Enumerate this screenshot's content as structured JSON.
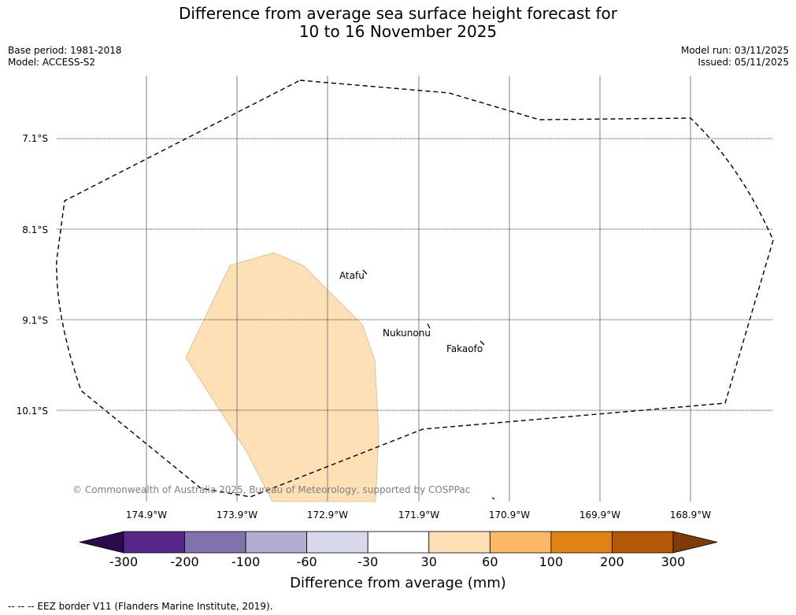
{
  "title": {
    "line1": "Difference from average sea surface height forecast for",
    "line2": "10 to 16 November 2025"
  },
  "meta": {
    "base_period": "Base period: 1981-2018",
    "model": "Model: ACCESS-S2",
    "model_run": "Model run: 03/11/2025",
    "issued": "Issued: 05/11/2025"
  },
  "map": {
    "latitude_labels": [
      "7.1°S",
      "8.1°S",
      "9.1°S",
      "10.1°S"
    ],
    "longitude_labels": [
      "174.9°W",
      "173.9°W",
      "172.9°W",
      "171.9°W",
      "170.9°W",
      "169.9°W",
      "168.9°W"
    ],
    "places": [
      "Atafu",
      "Nukunonu",
      "Fakaofo"
    ],
    "copyright": "© Commonwealth of Australia 2025, Bureau of Meteorology, supported by COSPPac",
    "anomaly_region_class": "30 to 60",
    "colors": {
      "region_fill": "#fde0b6",
      "grid": "#808080",
      "eez": "#000000"
    }
  },
  "colorbar": {
    "label": "Difference from average (mm)",
    "ticks": [
      "-300",
      "-200",
      "-100",
      "-60",
      "-30",
      "30",
      "60",
      "100",
      "200",
      "300"
    ],
    "colors": [
      "#2d0a4e",
      "#542788",
      "#8073ac",
      "#b2abd2",
      "#d8daeb",
      "#ffffff",
      "#fee0b6",
      "#fdb863",
      "#e08214",
      "#b35806",
      "#7f3b08"
    ]
  },
  "footnote": "--  --  -- EEZ border V11 (Flanders Marine Institute, 2019)."
}
